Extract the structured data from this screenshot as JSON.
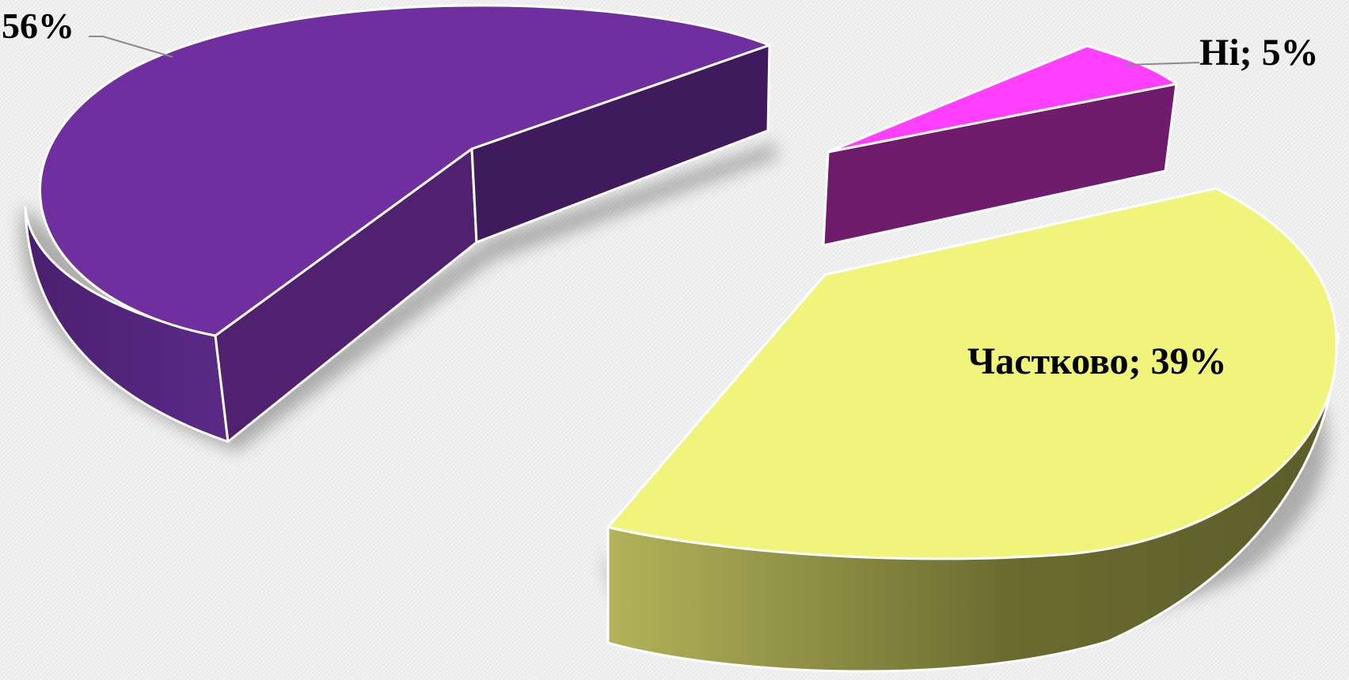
{
  "chart_data": {
    "type": "pie",
    "style": "3d-exploded",
    "slices": [
      {
        "label": "",
        "value": 56,
        "text": "56%",
        "color": "#6f2f9f"
      },
      {
        "label": "Ні",
        "value": 5,
        "text": "Ні; 5%",
        "color": "#ff3fff"
      },
      {
        "label": "Частково",
        "value": 39,
        "text": "Частково; 39%",
        "color": "#f0f47a"
      }
    ]
  }
}
